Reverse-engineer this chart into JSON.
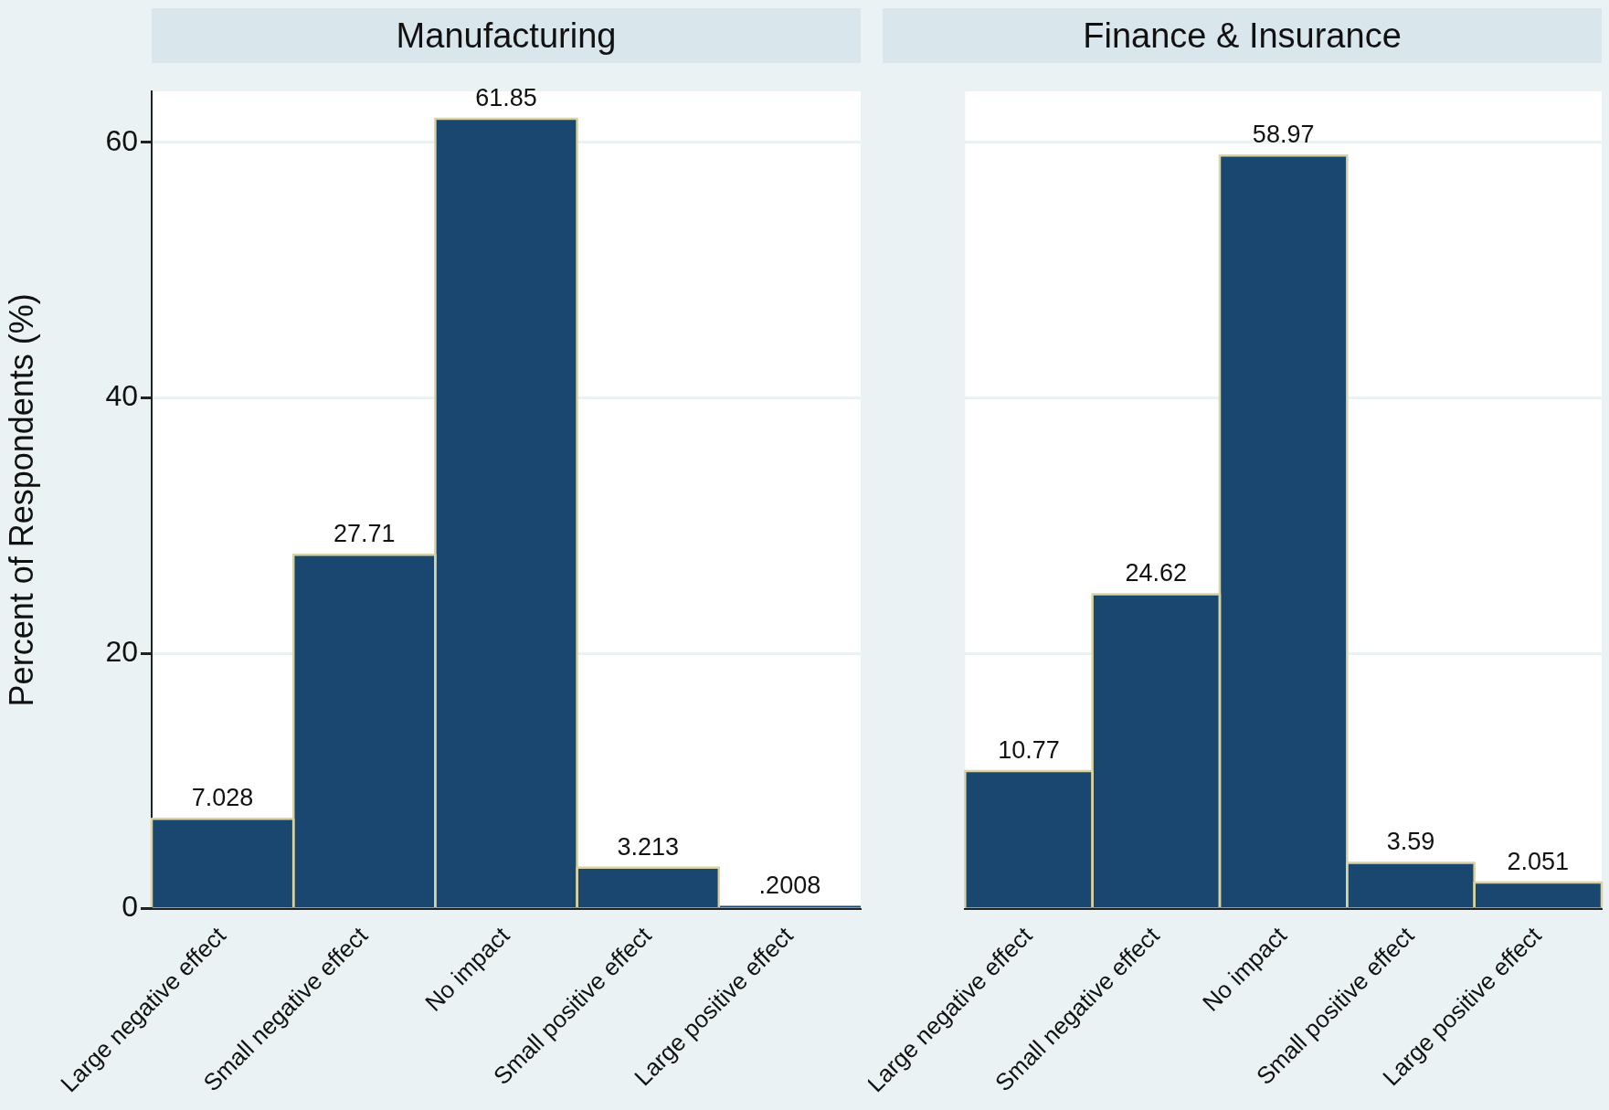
{
  "chart_data": [
    {
      "type": "bar",
      "title": "Manufacturing",
      "ylabel": "Percent of Respondents (%)",
      "categories": [
        "Large negative effect",
        "Small negative effect",
        "No impact",
        "Small positive effect",
        "Large positive effect"
      ],
      "values": [
        7.028,
        27.71,
        61.85,
        3.213,
        0.2008
      ],
      "value_labels": [
        "7.028",
        "27.71",
        "61.85",
        "3.213",
        ".2008"
      ],
      "color": "#1a476f",
      "ylim": [
        0,
        64
      ],
      "yticks": [
        0,
        20,
        40,
        60
      ],
      "grid": "y"
    },
    {
      "type": "bar",
      "title": "Finance & Insurance",
      "categories": [
        "Large negative effect",
        "Small negative effect",
        "No impact",
        "Small positive effect",
        "Large positive effect"
      ],
      "values": [
        10.77,
        24.62,
        58.97,
        3.59,
        2.051
      ],
      "value_labels": [
        "10.77",
        "24.62",
        "58.97",
        "3.59",
        "2.051"
      ],
      "color": "#1a476f",
      "ylim": [
        0,
        64
      ],
      "yticks": [
        0,
        20,
        40,
        60
      ],
      "grid": "y",
      "tick_labels": "x"
    }
  ]
}
